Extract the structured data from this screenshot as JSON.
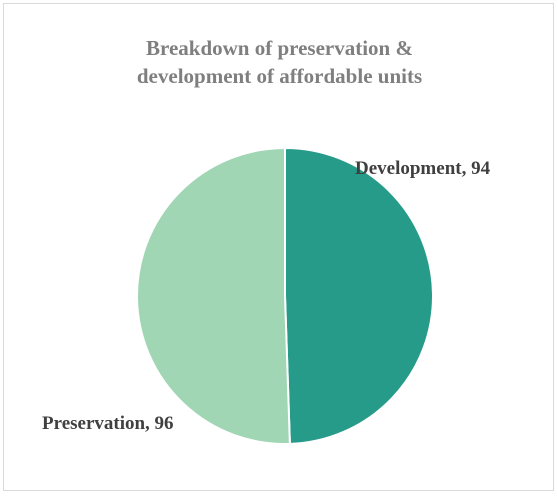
{
  "chart_data": {
    "type": "pie",
    "title": [
      "Breakdown of preservation &",
      "development of affordable units"
    ],
    "slices": [
      {
        "label": "Development",
        "value": 94,
        "color": "#279b89"
      },
      {
        "label": "Preservation",
        "value": 96,
        "color": "#a0d6b4"
      }
    ],
    "data_labels": [
      "Development, 94",
      "Preservation, 96"
    ],
    "legend": "none",
    "slice_border_color": "#ffffff"
  }
}
